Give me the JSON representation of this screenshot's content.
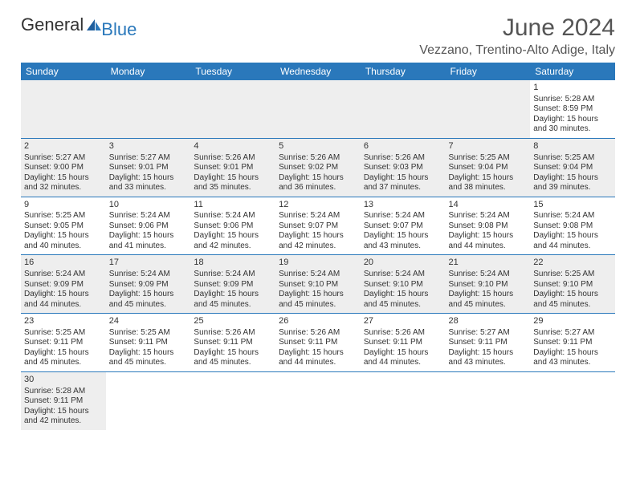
{
  "logo": {
    "text1": "General",
    "text2": "Blue"
  },
  "title": "June 2024",
  "location": "Vezzano, Trentino-Alto Adige, Italy",
  "colors": {
    "accent": "#2a78bb",
    "shade": "#eeeeee",
    "text": "#333333"
  },
  "day_headers": [
    "Sunday",
    "Monday",
    "Tuesday",
    "Wednesday",
    "Thursday",
    "Friday",
    "Saturday"
  ],
  "weeks": [
    [
      null,
      null,
      null,
      null,
      null,
      null,
      {
        "n": "1",
        "sr": "Sunrise: 5:28 AM",
        "ss": "Sunset: 8:59 PM",
        "dl1": "Daylight: 15 hours",
        "dl2": "and 30 minutes."
      }
    ],
    [
      {
        "n": "2",
        "sr": "Sunrise: 5:27 AM",
        "ss": "Sunset: 9:00 PM",
        "dl1": "Daylight: 15 hours",
        "dl2": "and 32 minutes."
      },
      {
        "n": "3",
        "sr": "Sunrise: 5:27 AM",
        "ss": "Sunset: 9:01 PM",
        "dl1": "Daylight: 15 hours",
        "dl2": "and 33 minutes."
      },
      {
        "n": "4",
        "sr": "Sunrise: 5:26 AM",
        "ss": "Sunset: 9:01 PM",
        "dl1": "Daylight: 15 hours",
        "dl2": "and 35 minutes."
      },
      {
        "n": "5",
        "sr": "Sunrise: 5:26 AM",
        "ss": "Sunset: 9:02 PM",
        "dl1": "Daylight: 15 hours",
        "dl2": "and 36 minutes."
      },
      {
        "n": "6",
        "sr": "Sunrise: 5:26 AM",
        "ss": "Sunset: 9:03 PM",
        "dl1": "Daylight: 15 hours",
        "dl2": "and 37 minutes."
      },
      {
        "n": "7",
        "sr": "Sunrise: 5:25 AM",
        "ss": "Sunset: 9:04 PM",
        "dl1": "Daylight: 15 hours",
        "dl2": "and 38 minutes."
      },
      {
        "n": "8",
        "sr": "Sunrise: 5:25 AM",
        "ss": "Sunset: 9:04 PM",
        "dl1": "Daylight: 15 hours",
        "dl2": "and 39 minutes."
      }
    ],
    [
      {
        "n": "9",
        "sr": "Sunrise: 5:25 AM",
        "ss": "Sunset: 9:05 PM",
        "dl1": "Daylight: 15 hours",
        "dl2": "and 40 minutes."
      },
      {
        "n": "10",
        "sr": "Sunrise: 5:24 AM",
        "ss": "Sunset: 9:06 PM",
        "dl1": "Daylight: 15 hours",
        "dl2": "and 41 minutes."
      },
      {
        "n": "11",
        "sr": "Sunrise: 5:24 AM",
        "ss": "Sunset: 9:06 PM",
        "dl1": "Daylight: 15 hours",
        "dl2": "and 42 minutes."
      },
      {
        "n": "12",
        "sr": "Sunrise: 5:24 AM",
        "ss": "Sunset: 9:07 PM",
        "dl1": "Daylight: 15 hours",
        "dl2": "and 42 minutes."
      },
      {
        "n": "13",
        "sr": "Sunrise: 5:24 AM",
        "ss": "Sunset: 9:07 PM",
        "dl1": "Daylight: 15 hours",
        "dl2": "and 43 minutes."
      },
      {
        "n": "14",
        "sr": "Sunrise: 5:24 AM",
        "ss": "Sunset: 9:08 PM",
        "dl1": "Daylight: 15 hours",
        "dl2": "and 44 minutes."
      },
      {
        "n": "15",
        "sr": "Sunrise: 5:24 AM",
        "ss": "Sunset: 9:08 PM",
        "dl1": "Daylight: 15 hours",
        "dl2": "and 44 minutes."
      }
    ],
    [
      {
        "n": "16",
        "sr": "Sunrise: 5:24 AM",
        "ss": "Sunset: 9:09 PM",
        "dl1": "Daylight: 15 hours",
        "dl2": "and 44 minutes."
      },
      {
        "n": "17",
        "sr": "Sunrise: 5:24 AM",
        "ss": "Sunset: 9:09 PM",
        "dl1": "Daylight: 15 hours",
        "dl2": "and 45 minutes."
      },
      {
        "n": "18",
        "sr": "Sunrise: 5:24 AM",
        "ss": "Sunset: 9:09 PM",
        "dl1": "Daylight: 15 hours",
        "dl2": "and 45 minutes."
      },
      {
        "n": "19",
        "sr": "Sunrise: 5:24 AM",
        "ss": "Sunset: 9:10 PM",
        "dl1": "Daylight: 15 hours",
        "dl2": "and 45 minutes."
      },
      {
        "n": "20",
        "sr": "Sunrise: 5:24 AM",
        "ss": "Sunset: 9:10 PM",
        "dl1": "Daylight: 15 hours",
        "dl2": "and 45 minutes."
      },
      {
        "n": "21",
        "sr": "Sunrise: 5:24 AM",
        "ss": "Sunset: 9:10 PM",
        "dl1": "Daylight: 15 hours",
        "dl2": "and 45 minutes."
      },
      {
        "n": "22",
        "sr": "Sunrise: 5:25 AM",
        "ss": "Sunset: 9:10 PM",
        "dl1": "Daylight: 15 hours",
        "dl2": "and 45 minutes."
      }
    ],
    [
      {
        "n": "23",
        "sr": "Sunrise: 5:25 AM",
        "ss": "Sunset: 9:11 PM",
        "dl1": "Daylight: 15 hours",
        "dl2": "and 45 minutes."
      },
      {
        "n": "24",
        "sr": "Sunrise: 5:25 AM",
        "ss": "Sunset: 9:11 PM",
        "dl1": "Daylight: 15 hours",
        "dl2": "and 45 minutes."
      },
      {
        "n": "25",
        "sr": "Sunrise: 5:26 AM",
        "ss": "Sunset: 9:11 PM",
        "dl1": "Daylight: 15 hours",
        "dl2": "and 45 minutes."
      },
      {
        "n": "26",
        "sr": "Sunrise: 5:26 AM",
        "ss": "Sunset: 9:11 PM",
        "dl1": "Daylight: 15 hours",
        "dl2": "and 44 minutes."
      },
      {
        "n": "27",
        "sr": "Sunrise: 5:26 AM",
        "ss": "Sunset: 9:11 PM",
        "dl1": "Daylight: 15 hours",
        "dl2": "and 44 minutes."
      },
      {
        "n": "28",
        "sr": "Sunrise: 5:27 AM",
        "ss": "Sunset: 9:11 PM",
        "dl1": "Daylight: 15 hours",
        "dl2": "and 43 minutes."
      },
      {
        "n": "29",
        "sr": "Sunrise: 5:27 AM",
        "ss": "Sunset: 9:11 PM",
        "dl1": "Daylight: 15 hours",
        "dl2": "and 43 minutes."
      }
    ],
    [
      {
        "n": "30",
        "sr": "Sunrise: 5:28 AM",
        "ss": "Sunset: 9:11 PM",
        "dl1": "Daylight: 15 hours",
        "dl2": "and 42 minutes."
      },
      null,
      null,
      null,
      null,
      null,
      null
    ]
  ]
}
